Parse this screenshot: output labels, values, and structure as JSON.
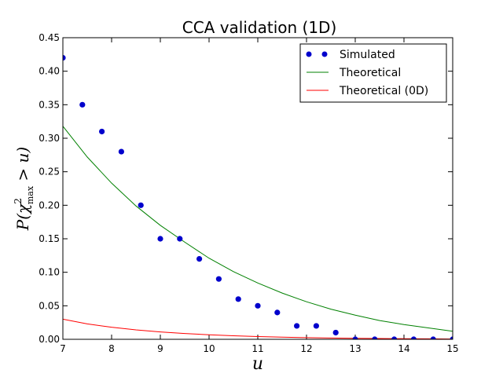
{
  "chart_data": {
    "type": "line",
    "title": "CCA validation (1D)",
    "xlabel": "u",
    "ylabel": "P(χ²max > u)",
    "ylabel_parts": {
      "p": "P(",
      "chi": "χ",
      "sup": "2",
      "sub": "max",
      "rest": " > u)"
    },
    "xlim": [
      7,
      15
    ],
    "ylim": [
      0,
      0.45
    ],
    "x_ticks": [
      7,
      8,
      9,
      10,
      11,
      12,
      13,
      14,
      15
    ],
    "y_ticks": [
      0.0,
      0.05,
      0.1,
      0.15,
      0.2,
      0.25,
      0.3,
      0.35,
      0.4,
      0.45
    ],
    "grid": false,
    "legend_position": "top-right",
    "series": [
      {
        "name": "Simulated",
        "kind": "scatter",
        "color": "#0000cc",
        "x": [
          7.0,
          7.4,
          7.8,
          8.2,
          8.6,
          9.0,
          9.4,
          9.8,
          10.2,
          10.6,
          11.0,
          11.4,
          11.8,
          12.2,
          12.6,
          13.0,
          13.4,
          13.8,
          14.2,
          14.6,
          15.0
        ],
        "y": [
          0.42,
          0.35,
          0.31,
          0.28,
          0.2,
          0.15,
          0.15,
          0.12,
          0.09,
          0.06,
          0.05,
          0.04,
          0.02,
          0.02,
          0.01,
          0.0,
          0.0,
          0.0,
          0.0,
          0.0,
          0.0
        ]
      },
      {
        "name": "Theoretical",
        "kind": "line",
        "color": "#008000",
        "x": [
          7.0,
          7.5,
          8.0,
          8.5,
          9.0,
          9.5,
          10.0,
          10.5,
          11.0,
          11.5,
          12.0,
          12.5,
          13.0,
          13.5,
          14.0,
          14.5,
          15.0
        ],
        "y": [
          0.318,
          0.272,
          0.233,
          0.199,
          0.17,
          0.145,
          0.121,
          0.101,
          0.084,
          0.069,
          0.056,
          0.045,
          0.036,
          0.028,
          0.022,
          0.017,
          0.012
        ]
      },
      {
        "name": "Theoretical (0D)",
        "kind": "line",
        "color": "#ff0000",
        "x": [
          7.0,
          7.5,
          8.0,
          8.5,
          9.0,
          9.5,
          10.0,
          10.5,
          11.0,
          11.5,
          12.0,
          12.5,
          13.0,
          13.5,
          14.0,
          14.5,
          15.0
        ],
        "y": [
          0.03,
          0.023,
          0.018,
          0.014,
          0.011,
          0.0087,
          0.0068,
          0.0053,
          0.0041,
          0.0032,
          0.0025,
          0.0019,
          0.0015,
          0.0012,
          0.0009,
          0.0007,
          0.0005
        ]
      }
    ]
  }
}
